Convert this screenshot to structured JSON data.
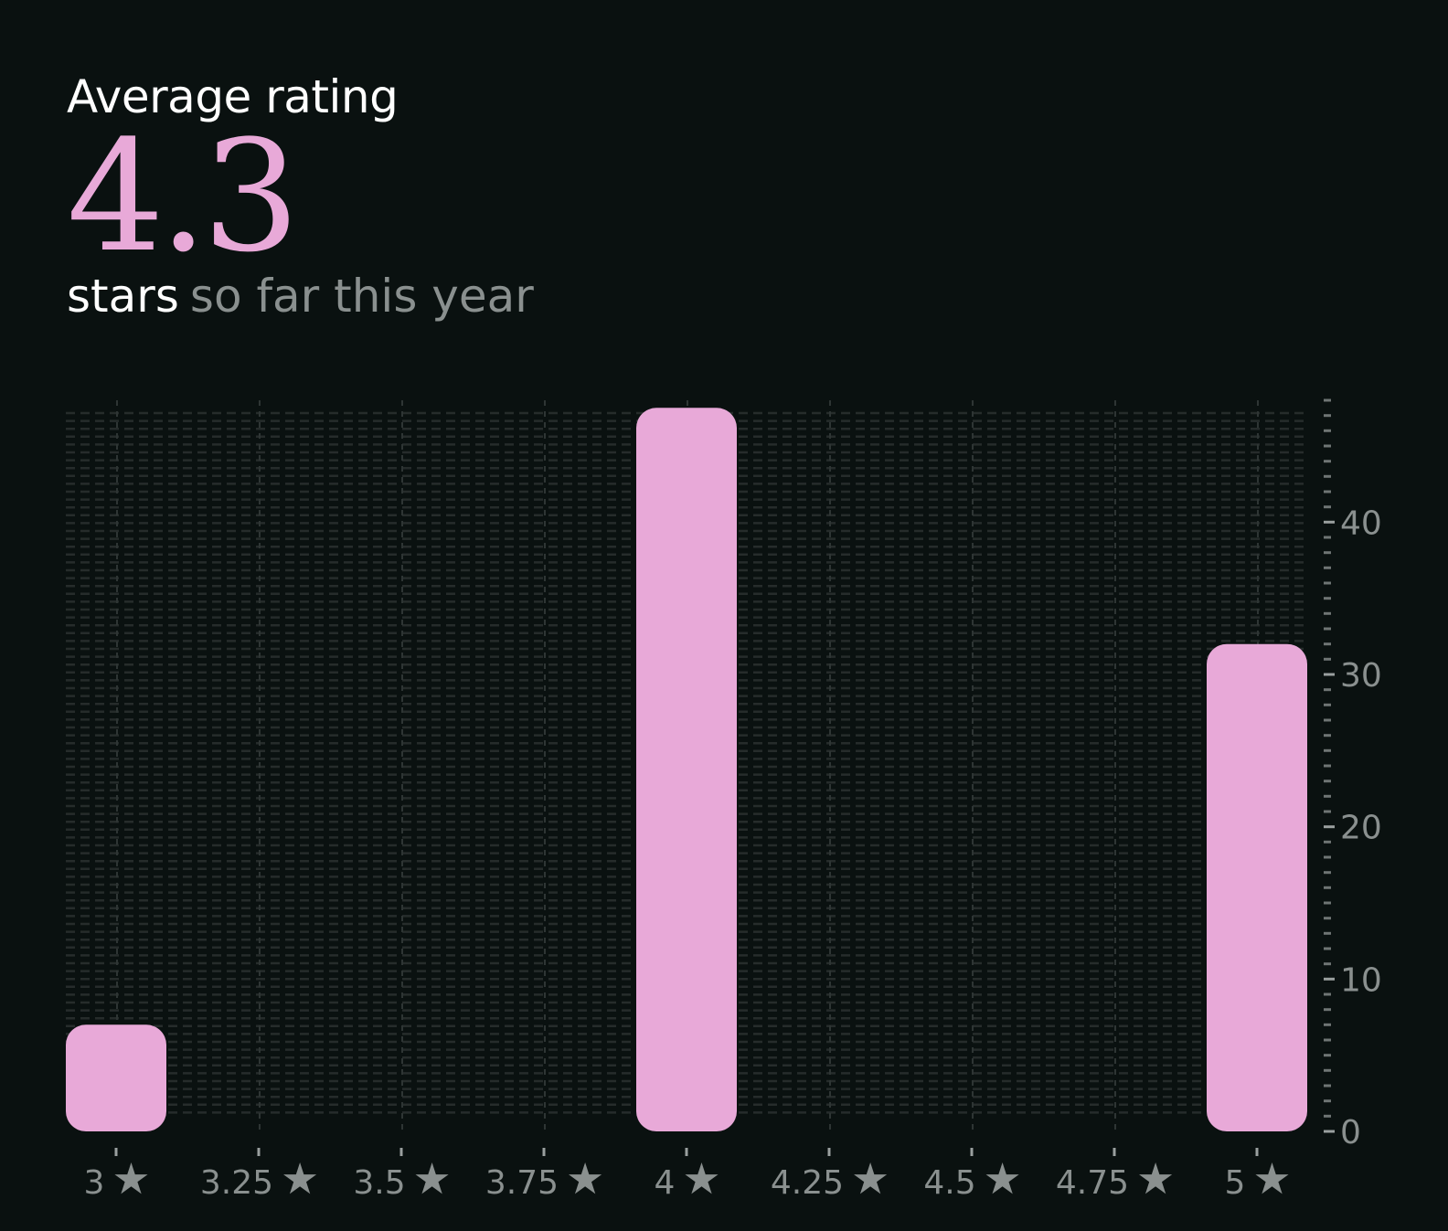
{
  "header": {
    "title": "Average rating",
    "value": "4.3",
    "unit": "stars",
    "period": "so far this year"
  },
  "chart_data": {
    "type": "bar",
    "x": [
      3,
      3.25,
      3.5,
      3.75,
      4,
      4.25,
      4.5,
      4.75,
      5
    ],
    "x_tick_labels": [
      "3",
      "3.25",
      "3.5",
      "3.75",
      "4",
      "4.25",
      "4.5",
      "4.75",
      "5"
    ],
    "tick_suffix_icon": "star-icon",
    "bars": [
      {
        "x": 3,
        "value": 7
      },
      {
        "x": 4,
        "value": 47.5
      },
      {
        "x": 5,
        "value": 32
      }
    ],
    "y_ticks": [
      0,
      10,
      20,
      30,
      40
    ],
    "ylim": [
      0,
      48
    ],
    "y_axis_position": "right",
    "grid": true,
    "colors": {
      "bar": "#e8a9d8",
      "background": "#0a1110",
      "grid": "#262c2b",
      "tick_text": "#8a908f"
    }
  }
}
